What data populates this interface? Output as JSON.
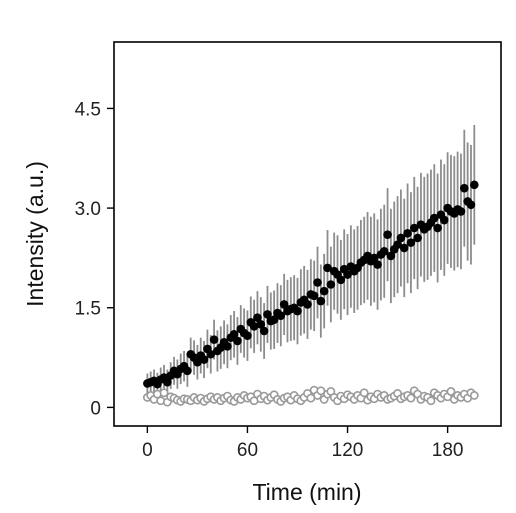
{
  "chart_data": {
    "type": "scatter",
    "title": "",
    "xlabel": "Time (min)",
    "ylabel": "Intensity (a.u.)",
    "xlim": [
      -20,
      212
    ],
    "ylim": [
      -0.28,
      5.5
    ],
    "xticks": [
      0,
      60,
      120,
      180
    ],
    "yticks": [
      0,
      1.5,
      3.0,
      4.5
    ],
    "ytick_labels": [
      "0",
      "1.5",
      "3.0",
      "4.5"
    ],
    "grid": false,
    "legend": "none",
    "series": [
      {
        "marker": "filled-circle",
        "color": "#000000",
        "errorbar_color": "#8c8c8c",
        "x": [
          0,
          2,
          4,
          6,
          8,
          10,
          12,
          14,
          16,
          18,
          20,
          22,
          24,
          26,
          28,
          30,
          32,
          34,
          36,
          38,
          40,
          42,
          44,
          46,
          48,
          50,
          52,
          54,
          56,
          58,
          60,
          62,
          64,
          66,
          68,
          70,
          72,
          74,
          76,
          78,
          80,
          82,
          84,
          86,
          88,
          90,
          92,
          94,
          96,
          98,
          100,
          102,
          104,
          106,
          108,
          110,
          112,
          114,
          116,
          118,
          120,
          122,
          124,
          126,
          128,
          130,
          132,
          134,
          136,
          138,
          140,
          142,
          144,
          146,
          148,
          150,
          152,
          154,
          156,
          158,
          160,
          162,
          164,
          166,
          168,
          170,
          172,
          174,
          176,
          178,
          180,
          182,
          184,
          186,
          188,
          190,
          192,
          194,
          196
        ],
        "y": [
          0.36,
          0.38,
          0.4,
          0.35,
          0.42,
          0.45,
          0.38,
          0.48,
          0.55,
          0.5,
          0.58,
          0.62,
          0.55,
          0.8,
          0.75,
          0.68,
          0.78,
          0.72,
          0.88,
          0.8,
          1.02,
          0.85,
          0.9,
          0.98,
          0.92,
          1.05,
          1.1,
          1.0,
          1.18,
          1.12,
          1.08,
          1.28,
          1.22,
          1.35,
          1.25,
          1.15,
          1.4,
          1.3,
          1.32,
          1.42,
          1.38,
          1.55,
          1.45,
          1.48,
          1.5,
          1.45,
          1.58,
          1.62,
          1.55,
          1.7,
          1.68,
          1.88,
          1.6,
          1.75,
          2.1,
          1.85,
          2.05,
          2.0,
          1.92,
          2.08,
          2.0,
          2.12,
          2.05,
          2.1,
          2.18,
          2.22,
          2.28,
          2.2,
          2.25,
          2.15,
          2.3,
          2.35,
          2.6,
          2.28,
          2.38,
          2.45,
          2.55,
          2.4,
          2.62,
          2.48,
          2.7,
          2.55,
          2.75,
          2.68,
          2.72,
          2.78,
          2.85,
          2.7,
          2.9,
          2.82,
          3.0,
          2.95,
          2.92,
          2.98,
          2.95,
          3.3,
          3.1,
          3.05,
          3.35
        ],
        "err": [
          0.15,
          0.16,
          0.17,
          0.17,
          0.18,
          0.19,
          0.19,
          0.2,
          0.21,
          0.22,
          0.23,
          0.23,
          0.24,
          0.25,
          0.26,
          0.26,
          0.27,
          0.28,
          0.29,
          0.29,
          0.3,
          0.31,
          0.32,
          0.33,
          0.33,
          0.34,
          0.35,
          0.36,
          0.36,
          0.37,
          0.38,
          0.39,
          0.4,
          0.4,
          0.41,
          0.42,
          0.43,
          0.43,
          0.44,
          0.45,
          0.46,
          0.46,
          0.47,
          0.48,
          0.49,
          0.5,
          0.5,
          0.51,
          0.52,
          0.53,
          0.53,
          0.54,
          0.55,
          0.56,
          0.57,
          0.57,
          0.58,
          0.59,
          0.6,
          0.6,
          0.61,
          0.62,
          0.63,
          0.63,
          0.64,
          0.65,
          0.66,
          0.67,
          0.67,
          0.68,
          0.69,
          0.7,
          0.7,
          0.71,
          0.72,
          0.73,
          0.73,
          0.74,
          0.75,
          0.76,
          0.77,
          0.77,
          0.78,
          0.79,
          0.8,
          0.8,
          0.81,
          0.82,
          0.83,
          0.84,
          0.84,
          0.85,
          0.86,
          0.87,
          0.87,
          0.88,
          0.89,
          0.9,
          0.9
        ]
      },
      {
        "marker": "open-circle",
        "color": "#999999",
        "x": [
          0,
          2,
          4,
          6,
          8,
          10,
          12,
          14,
          16,
          18,
          20,
          22,
          24,
          26,
          28,
          30,
          32,
          34,
          36,
          38,
          40,
          42,
          44,
          46,
          48,
          50,
          52,
          54,
          56,
          58,
          60,
          62,
          64,
          66,
          68,
          70,
          72,
          74,
          76,
          78,
          80,
          82,
          84,
          86,
          88,
          90,
          92,
          94,
          96,
          98,
          100,
          102,
          104,
          106,
          108,
          110,
          112,
          114,
          116,
          118,
          120,
          122,
          124,
          126,
          128,
          130,
          132,
          134,
          136,
          138,
          140,
          142,
          144,
          146,
          148,
          150,
          152,
          154,
          156,
          158,
          160,
          162,
          164,
          166,
          168,
          170,
          172,
          174,
          176,
          178,
          180,
          182,
          184,
          186,
          188,
          190,
          192,
          194,
          196
        ],
        "y": [
          0.15,
          0.18,
          0.12,
          0.2,
          0.1,
          0.22,
          0.08,
          0.16,
          0.14,
          0.11,
          0.09,
          0.13,
          0.12,
          0.1,
          0.15,
          0.11,
          0.14,
          0.09,
          0.13,
          0.16,
          0.12,
          0.15,
          0.1,
          0.14,
          0.17,
          0.11,
          0.09,
          0.15,
          0.12,
          0.18,
          0.14,
          0.16,
          0.1,
          0.2,
          0.13,
          0.17,
          0.11,
          0.15,
          0.19,
          0.12,
          0.09,
          0.14,
          0.16,
          0.11,
          0.18,
          0.13,
          0.1,
          0.15,
          0.21,
          0.14,
          0.26,
          0.18,
          0.25,
          0.12,
          0.2,
          0.24,
          0.15,
          0.1,
          0.17,
          0.13,
          0.19,
          0.16,
          0.12,
          0.18,
          0.14,
          0.22,
          0.11,
          0.16,
          0.13,
          0.2,
          0.15,
          0.18,
          0.12,
          0.14,
          0.17,
          0.21,
          0.13,
          0.16,
          0.18,
          0.14,
          0.25,
          0.2,
          0.12,
          0.17,
          0.15,
          0.1,
          0.22,
          0.18,
          0.14,
          0.2,
          0.16,
          0.24,
          0.12,
          0.18,
          0.15,
          0.2,
          0.14,
          0.22,
          0.18
        ]
      }
    ]
  }
}
